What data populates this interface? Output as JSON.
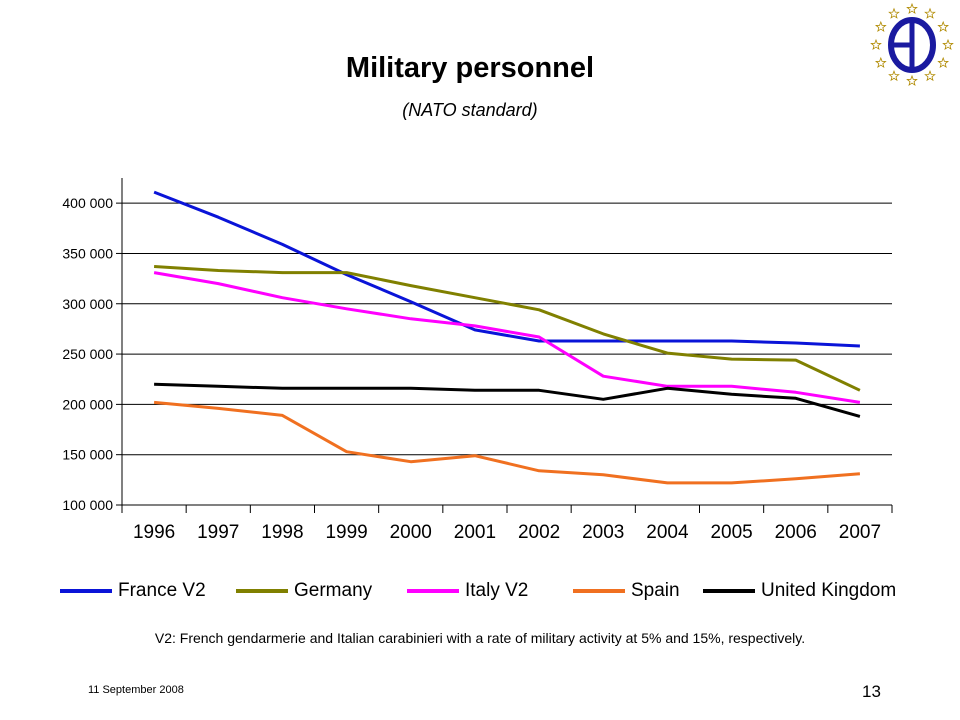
{
  "slide": {
    "title": "Military personnel",
    "subtitle": "(NATO standard)",
    "footnote": "V2: French gendarmerie and Italian carabinieri with a rate of military activity at 5% and 15%, respectively.",
    "date": "11 September 2008",
    "page_number": "13"
  },
  "logo": {
    "icon": "eu-circle-stars-icon",
    "star_color": "#e8c200",
    "ring_color": "#1a1aa0"
  },
  "chart_data": {
    "type": "line",
    "title": "",
    "xlabel": "",
    "ylabel": "",
    "categories": [
      "1996",
      "1997",
      "1998",
      "1999",
      "2000",
      "2001",
      "2002",
      "2003",
      "2004",
      "2005",
      "2006",
      "2007"
    ],
    "ylim": [
      100000,
      420000
    ],
    "yticks": [
      100000,
      150000,
      200000,
      250000,
      300000,
      350000,
      400000
    ],
    "ytick_labels": [
      "100 000",
      "150 000",
      "200 000",
      "250 000",
      "300 000",
      "350 000",
      "400 000"
    ],
    "grid": true,
    "legend_position": "bottom",
    "series": [
      {
        "name": "France V2",
        "color": "#0a14d8",
        "values": [
          411000,
          386000,
          359000,
          329000,
          302000,
          274000,
          263000,
          263000,
          263000,
          263000,
          261000,
          258000
        ]
      },
      {
        "name": "Germany",
        "color": "#808000",
        "values": [
          337000,
          333000,
          331000,
          331000,
          318000,
          306000,
          294000,
          270000,
          251000,
          245000,
          244000,
          214000
        ]
      },
      {
        "name": "Italy V2",
        "color": "#ff00ff",
        "values": [
          331000,
          320000,
          306000,
          295000,
          285000,
          278000,
          267000,
          228000,
          218000,
          218000,
          212000,
          202000
        ]
      },
      {
        "name": "Spain",
        "color": "#f07020",
        "values": [
          202000,
          196000,
          189000,
          153000,
          143000,
          149000,
          134000,
          130000,
          122000,
          122000,
          126000,
          131000
        ]
      },
      {
        "name": "United Kingdom",
        "color": "#000000",
        "values": [
          220000,
          218000,
          216000,
          216000,
          216000,
          214000,
          214000,
          205000,
          216000,
          210000,
          206000,
          188000
        ]
      }
    ]
  }
}
